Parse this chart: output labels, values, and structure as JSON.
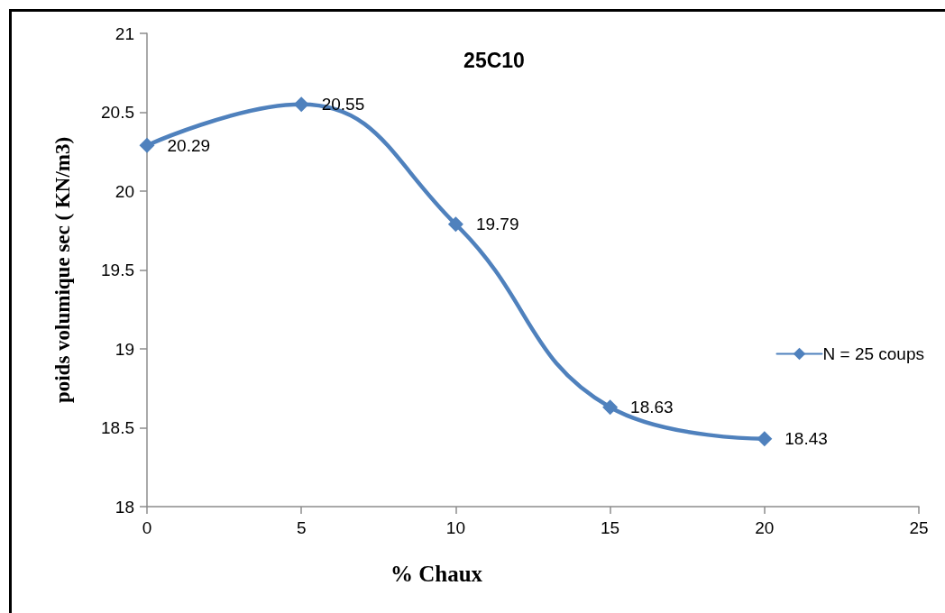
{
  "chart_data": {
    "type": "line",
    "title": "25C10",
    "xlabel": "% Chaux",
    "ylabel": "poids volumique sec ( KN/m3)",
    "x": [
      0,
      5,
      10,
      15,
      20
    ],
    "series": [
      {
        "name": "N = 25 coups",
        "color": "#4f81bd",
        "values": [
          20.29,
          20.55,
          19.79,
          18.63,
          18.43
        ]
      }
    ],
    "xlim": [
      0,
      25
    ],
    "xticks": [
      0,
      5,
      10,
      15,
      20,
      25
    ],
    "ylim": [
      18,
      21
    ],
    "yticks": [
      18,
      18.5,
      19,
      19.5,
      20,
      20.5,
      21
    ],
    "grid": false,
    "legend": "right",
    "marker": "diamond",
    "line_style": "solid",
    "data_labels": true
  }
}
